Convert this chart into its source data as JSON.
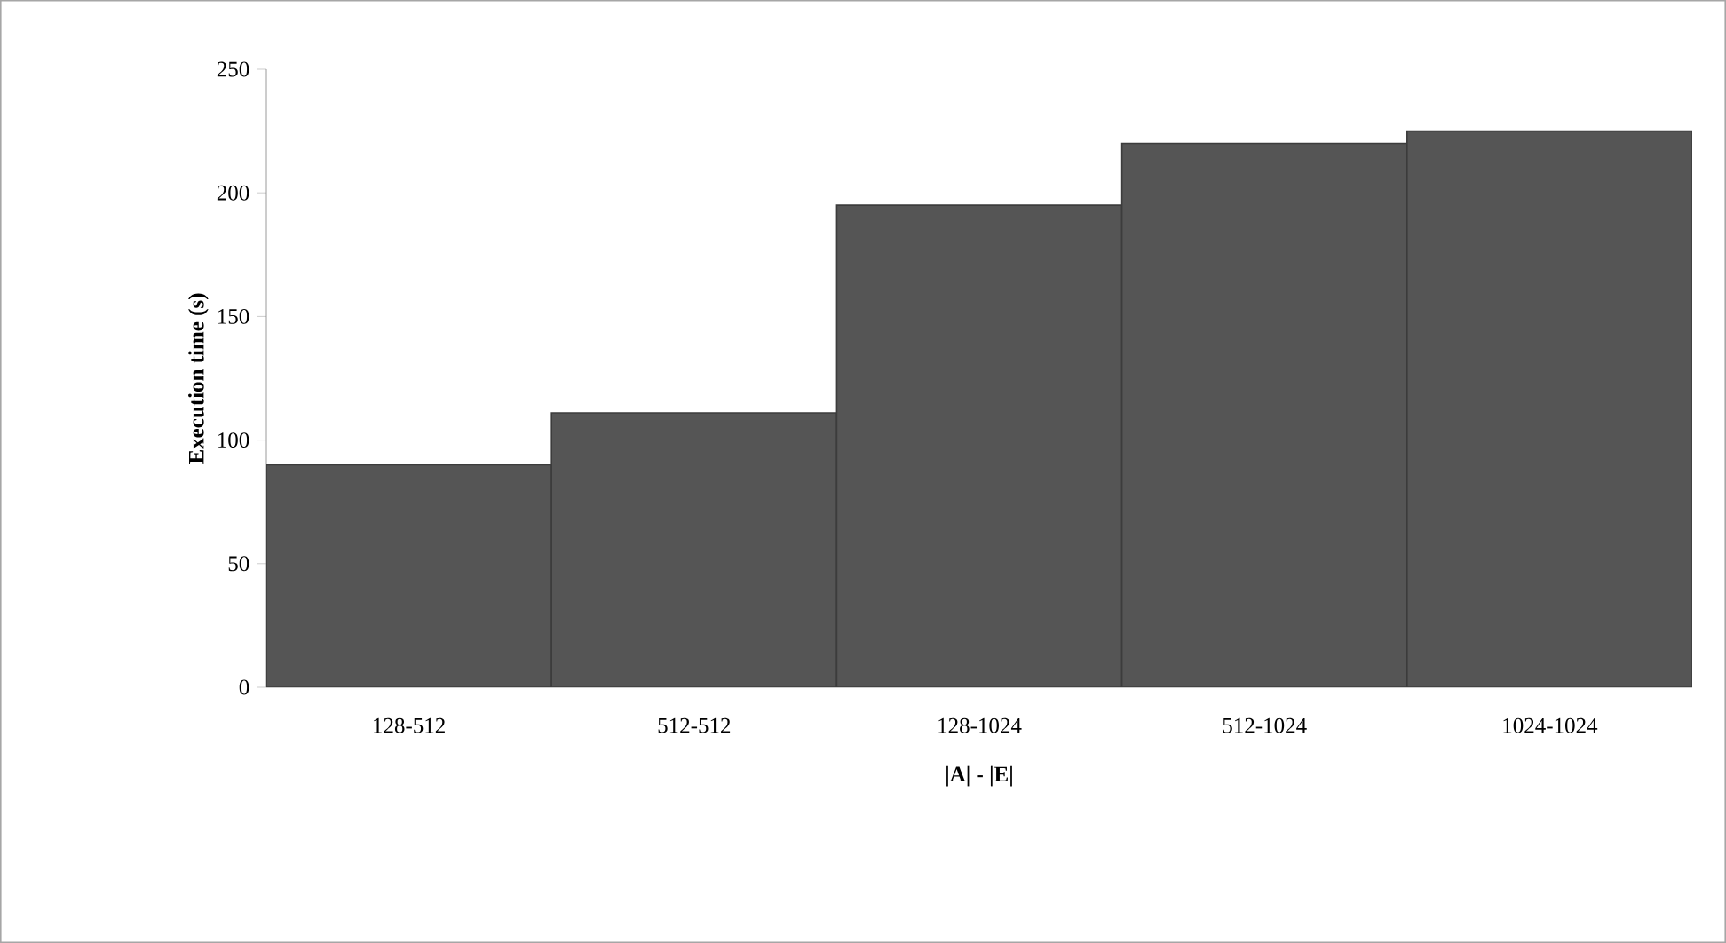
{
  "chart_data": {
    "type": "bar",
    "xlabel": "|A| - |E|",
    "ylabel": "Execution time (s)",
    "categories": [
      "128-512",
      "512-512",
      "128-1024",
      "512-1024",
      "1024-1024"
    ],
    "values": [
      90,
      111,
      195,
      220,
      225
    ],
    "color": "#555555",
    "ylim": [
      0,
      250
    ],
    "yticks": [
      0,
      50,
      100,
      150,
      200,
      250
    ],
    "grid": false
  }
}
